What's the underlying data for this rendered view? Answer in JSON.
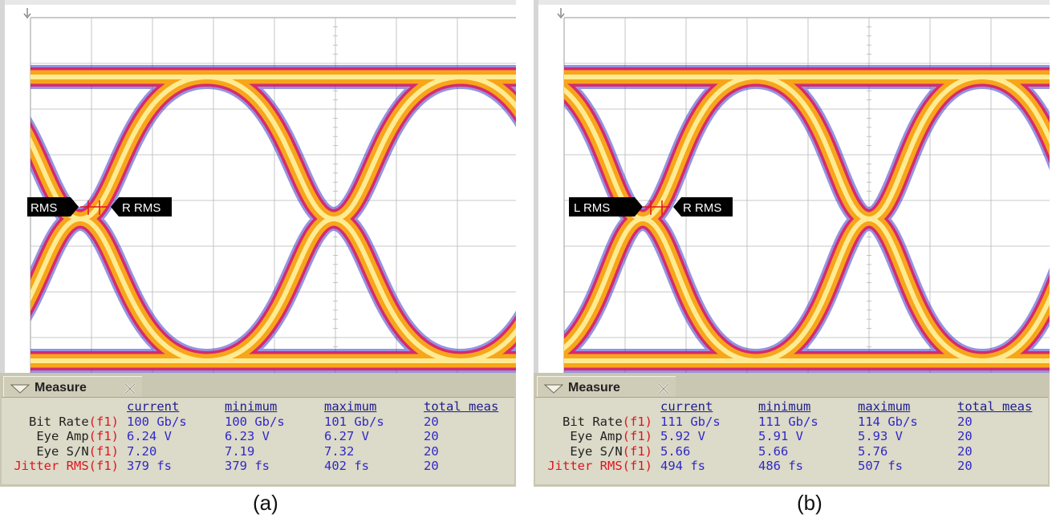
{
  "panels": [
    {
      "caption": "(a)",
      "markers": {
        "left": "RMS",
        "right": "R RMS"
      },
      "measure": {
        "title": "Measure",
        "columns": [
          "current",
          "minimum",
          "maximum",
          "total meas"
        ],
        "rows": [
          {
            "label": "Bit Rate",
            "fn": "(f1)",
            "current": "100 Gb/s",
            "minimum": "100 Gb/s",
            "maximum": "101 Gb/s",
            "total": "20"
          },
          {
            "label": "Eye Amp",
            "fn": "(f1)",
            "current": "6.24 V",
            "minimum": "6.23 V",
            "maximum": "6.27 V",
            "total": "20"
          },
          {
            "label": "Eye S/N",
            "fn": "(f1)",
            "current": "7.20",
            "minimum": "7.19",
            "maximum": "7.32",
            "total": "20"
          },
          {
            "label": "Jitter RMS",
            "fn": "(f1)",
            "current": "379 fs",
            "minimum": "379 fs",
            "maximum": "402 fs",
            "total": "20"
          }
        ]
      }
    },
    {
      "caption": "(b)",
      "markers": {
        "left": "L RMS",
        "right": "R RMS"
      },
      "measure": {
        "title": "Measure",
        "columns": [
          "current",
          "minimum",
          "maximum",
          "total meas"
        ],
        "rows": [
          {
            "label": "Bit Rate",
            "fn": "(f1)",
            "current": "111 Gb/s",
            "minimum": "111 Gb/s",
            "maximum": "114 Gb/s",
            "total": "20"
          },
          {
            "label": "Eye Amp",
            "fn": "(f1)",
            "current": "5.92 V",
            "minimum": "5.91 V",
            "maximum": "5.93 V",
            "total": "20"
          },
          {
            "label": "Eye S/N",
            "fn": "(f1)",
            "current": "5.66",
            "minimum": "5.66",
            "maximum": "5.76",
            "total": "20"
          },
          {
            "label": "Jitter RMS",
            "fn": "(f1)",
            "current": "494 fs",
            "minimum": "486 fs",
            "maximum": "507 fs",
            "total": "20"
          }
        ]
      }
    }
  ],
  "chart_data": [
    {
      "type": "eye-diagram",
      "bit_rate_gbps": 100,
      "eye_amplitude_v": 6.24,
      "eye_snr": 7.2,
      "jitter_rms_fs": 379,
      "unit_intervals_shown": 4
    },
    {
      "type": "eye-diagram",
      "bit_rate_gbps": 111,
      "eye_amplitude_v": 5.92,
      "eye_snr": 5.66,
      "jitter_rms_fs": 494,
      "unit_intervals_shown": 4.5
    }
  ],
  "colors": {
    "scope_background": "#ffffff",
    "grid": "#b8b8b8",
    "trace_core": "#fff3a0",
    "trace_mid": "#f7a51a",
    "trace_outer": "#e2185a",
    "trace_edge": "#3c3cc8",
    "measure_panel": "#dcdac8",
    "value_blue": "#2f29c8",
    "function_red": "#e0141e"
  },
  "icons": {
    "tab": "chevron-down-icon",
    "close": "close-icon",
    "trigger": "trigger-arrow-icon"
  }
}
